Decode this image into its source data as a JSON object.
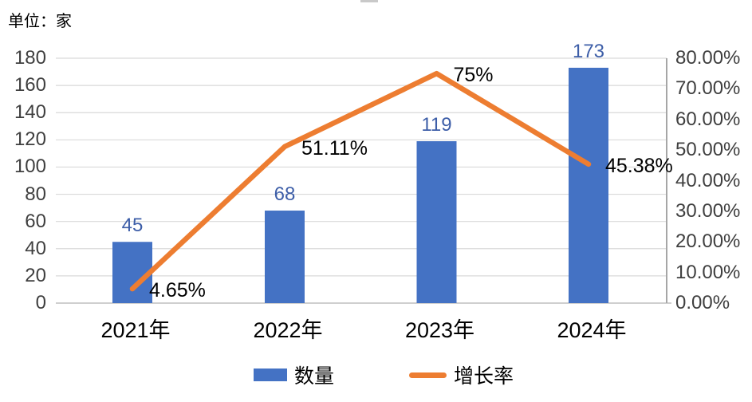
{
  "header": {
    "unit_label": "单位：家"
  },
  "colors": {
    "bar": "#4472C4",
    "line": "#ED7D31",
    "bar_label": "#3D5EA8",
    "grid": "#D9D9D9",
    "baseline": "#BFBFBF",
    "axis_line": "#A6A6A6",
    "tick_text": "#3F3F3F",
    "category_text": "#000000",
    "line_label_text": "#000000"
  },
  "chart_data": {
    "type": "combo bar+line",
    "title": "",
    "categories": [
      "2021年",
      "2022年",
      "2023年",
      "2024年"
    ],
    "series": [
      {
        "name": "数量",
        "type": "bar",
        "axis": "left",
        "values": [
          45,
          68,
          119,
          173
        ],
        "labels": [
          "45",
          "68",
          "119",
          "173"
        ]
      },
      {
        "name": "增长率",
        "type": "line",
        "axis": "right",
        "values": [
          4.65,
          51.11,
          75,
          45.38
        ],
        "labels": [
          "4.65%",
          "51.11%",
          "75%",
          "45.38%"
        ]
      }
    ],
    "left_axis": {
      "min": 0,
      "max": 180,
      "ticks": [
        "180",
        "160",
        "140",
        "120",
        "100",
        "80",
        "60",
        "40",
        "20",
        "0"
      ]
    },
    "right_axis": {
      "min": 0,
      "max": 80,
      "format": "percent",
      "ticks": [
        "80.00%",
        "70.00%",
        "60.00%",
        "50.00%",
        "40.00%",
        "30.00%",
        "20.00%",
        "10.00%",
        "0.00%"
      ]
    },
    "legend": [
      {
        "label": "数量"
      },
      {
        "label": "增长率"
      }
    ],
    "grid": true,
    "legend_position": "bottom"
  }
}
